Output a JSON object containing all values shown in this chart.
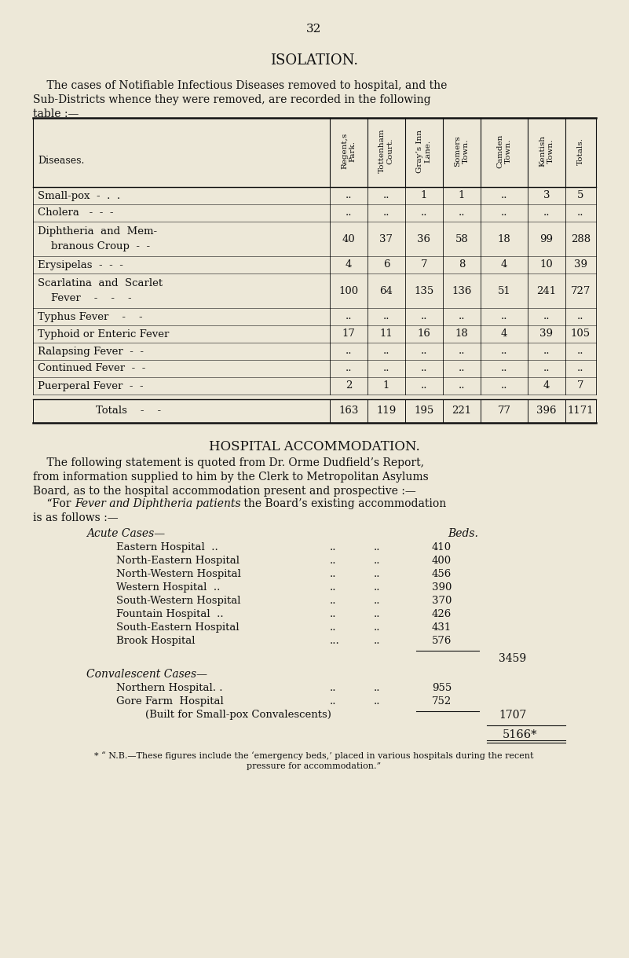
{
  "page_number": "32",
  "title": "ISOLATION.",
  "intro_line1": "    The cases of Notifiable Infectious Diseases removed to hospital, and the",
  "intro_line2": "Sub-Districts whence they were removed, are recorded in the following",
  "intro_line3": "table :—",
  "col_headers": [
    "Regent,s\nPark.",
    "Tottenham\nCourt.",
    "Gray’s Inn\nLane.",
    "Somers\nTown.",
    "Camden\nTown.",
    "Kentish\nTown.",
    "Totals."
  ],
  "row_label_header": "Diseases.",
  "rows": [
    {
      "disease": "Small-pox  -  .  .",
      "values": [
        "..",
        "..",
        "1",
        "1",
        "..",
        "3",
        "5"
      ]
    },
    {
      "disease": "Cholera   -  -  -",
      "values": [
        "..",
        "..",
        "..",
        "..",
        "..",
        "..",
        ".."
      ]
    },
    {
      "disease": "Diphtheria  and  Mem-\n    branous Croup  -  -",
      "values": [
        "40",
        "37",
        "36",
        "58",
        "18",
        "99",
        "288"
      ]
    },
    {
      "disease": "Erysipelas  -  -  -",
      "values": [
        "4",
        "6",
        "7",
        "8",
        "4",
        "10",
        "39"
      ]
    },
    {
      "disease": "Scarlatina  and  Scarlet\n    Fever    -    -    -",
      "values": [
        "100",
        "64",
        "135",
        "136",
        "51",
        "241",
        "727"
      ]
    },
    {
      "disease": "Typhus Fever    -    -",
      "values": [
        "..",
        "..",
        "..",
        "..",
        "..",
        "..",
        ".."
      ]
    },
    {
      "disease": "Typhoid or Enteric Fever",
      "values": [
        "17",
        "11",
        "16",
        "18",
        "4",
        "39",
        "105"
      ]
    },
    {
      "disease": "Ralapsing Fever  -  -",
      "values": [
        "..",
        "..",
        "..",
        "..",
        "..",
        "..",
        ".."
      ]
    },
    {
      "disease": "Continued Fever  -  -",
      "values": [
        "..",
        "..",
        "..",
        "..",
        "..",
        "..",
        ".."
      ]
    },
    {
      "disease": "Puerperal Fever  -  -",
      "values": [
        "2",
        "1",
        "..",
        "..",
        "..",
        "4",
        "7"
      ]
    }
  ],
  "totals_label": "Totals    -    -",
  "totals_values": [
    "163",
    "119",
    "195",
    "221",
    "77",
    "396",
    "1171"
  ],
  "hospital_title": "HOSPITAL ACCOMMODATION.",
  "hosp_intro1": "    The following statement is quoted from Dr. Orme Dudfield’s Report,",
  "hosp_intro2": "from information supplied to him by the Clerk to Metropolitan Asylums",
  "hosp_intro3": "Board, as to the hospital accommodation present and prospective :—",
  "fever_pre": "    “For ",
  "fever_italic": "Fever and Diphtheria patients",
  "fever_post": " the Board’s existing accommodation",
  "fever_line2": "is as follows :—",
  "acute_label": "Acute Cases—",
  "beds_label": "Beds.",
  "acute_hospitals": [
    [
      "Eastern Hospital  ..",
      "..",
      "410"
    ],
    [
      "North-Eastern Hospital",
      "..",
      "400"
    ],
    [
      "North-Western Hospital",
      "..",
      "456"
    ],
    [
      "Western Hospital  ..",
      "..",
      "390"
    ],
    [
      "South-Western Hospital",
      "..",
      "370"
    ],
    [
      "Fountain Hospital  ..",
      "..",
      "426"
    ],
    [
      "South-Eastern Hospital",
      "..",
      "431"
    ],
    [
      "Brook Hospital",
      "...",
      "576"
    ]
  ],
  "acute_subtotal": "3459",
  "conv_label": "Convalescent Cases—",
  "conv_hospitals": [
    [
      "Northern Hospital. .",
      "..",
      "955"
    ],
    [
      "Gore Farm  Hospital",
      "..",
      "752"
    ]
  ],
  "built_label": "(Built for Small-pox Convalescents)",
  "conv_subtotal": "1707",
  "grand_total": "5166*",
  "footnote1": "* “ N.B.—These figures include the ‘emergency beds,’ placed in various hospitals during the recent",
  "footnote2": "pressure for accommodation.”",
  "bg_color": "#ede8d8",
  "text_color": "#111111"
}
